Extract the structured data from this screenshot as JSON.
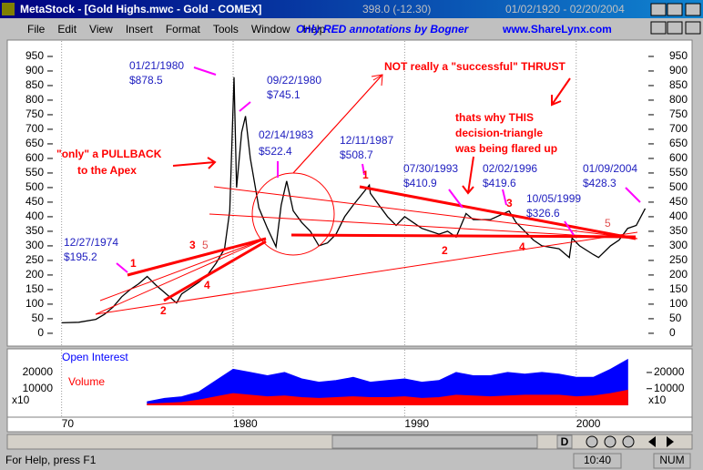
{
  "window": {
    "title": "MetaStock - [Gold Highs.mwc - Gold - COMEX]",
    "price": "398.0 (-12.30)",
    "date_range": "01/02/1920 - 02/20/2004"
  },
  "menu": [
    "File",
    "Edit",
    "View",
    "Insert",
    "Format",
    "Tools",
    "Window",
    "Help"
  ],
  "banner": [
    "Only RED annotations by Bogner",
    "www.ShareLynx.com"
  ],
  "chart_data": {
    "type": "line",
    "color": "#000000",
    "x": [
      1970,
      1971,
      1972,
      1972.5,
      1973,
      1973.5,
      1974,
      1974.5,
      1974.99,
      1975.5,
      1976,
      1976.7,
      1977,
      1978,
      1978.5,
      1979,
      1979.5,
      1979.8,
      1980.05,
      1980.2,
      1980.5,
      1980.72,
      1981,
      1981.5,
      1982,
      1982.5,
      1982.8,
      1983.12,
      1983.5,
      1984,
      1984.5,
      1985,
      1985.5,
      1986,
      1986.5,
      1987,
      1987.94,
      1988,
      1988.5,
      1989,
      1989.5,
      1990,
      1990.5,
      1991,
      1992,
      1992.5,
      1993,
      1993.58,
      1994,
      1995,
      1996.09,
      1996.5,
      1997,
      1997.5,
      1998,
      1999,
      1999.6,
      1999.76,
      2000.2,
      2001,
      2001.3,
      2002,
      2002.5,
      2003,
      2003.5,
      2004.02
    ],
    "values": [
      36,
      38,
      48,
      65,
      90,
      125,
      150,
      170,
      195.2,
      165,
      140,
      104,
      135,
      175,
      200,
      240,
      290,
      420,
      878.5,
      500,
      690,
      745.1,
      600,
      430,
      360,
      297,
      440,
      522.4,
      420,
      380,
      350,
      300,
      310,
      340,
      400,
      440,
      508.7,
      480,
      440,
      400,
      370,
      400,
      380,
      360,
      340,
      350,
      330,
      410.9,
      390,
      390,
      419.6,
      380,
      350,
      320,
      300,
      290,
      260,
      326.6,
      300,
      270,
      260,
      300,
      320,
      360,
      370,
      428.3
    ],
    "xlim": [
      1969.7,
      2004.1
    ],
    "ylim": [
      -44,
      1003
    ],
    "xticks": [
      {
        "value": 1970,
        "label": "70"
      },
      1980,
      1990,
      2000
    ],
    "yticks": [
      0,
      50,
      100,
      150,
      200,
      250,
      300,
      350,
      400,
      450,
      500,
      550,
      600,
      650,
      700,
      750,
      800,
      850,
      900,
      950
    ],
    "grid": true
  },
  "date_labels": [
    "01/21/1980",
    "$878.5",
    "09/22/1980",
    "$745.1",
    "02/14/1983",
    "$522.4",
    "12/11/1987",
    "$508.7",
    "07/30/1993",
    "$410.9",
    "02/02/1996",
    "$419.6",
    "10/05/1999",
    "$326.6",
    "01/09/2004",
    "$428.3",
    "12/27/1974",
    "$195.2"
  ],
  "red_notes": [
    "NOT really a \"successful\" THRUST",
    "thats why THIS",
    "decision-triangle",
    "was being flared up",
    "\"only\" a PULLBACK",
    "to the Apex",
    "1",
    "2",
    "3",
    "5",
    "4",
    "1",
    "2",
    "3",
    "4",
    "5"
  ],
  "volume_panel": {
    "type": "area",
    "x": [
      1975,
      1976,
      1977,
      1978,
      1979,
      1980,
      1981,
      1982,
      1983,
      1984,
      1985,
      1986,
      1987,
      1988,
      1989,
      1990,
      1991,
      1992,
      1993,
      1994,
      1995,
      1996,
      1997,
      1998,
      1999,
      2000,
      2001,
      2002,
      2003
    ],
    "series": [
      {
        "name": "Open Interest",
        "color": "#0000ff",
        "values": [
          2000,
          4000,
          5000,
          8000,
          15000,
          22000,
          20000,
          18000,
          20000,
          16000,
          14000,
          15000,
          17000,
          14000,
          15000,
          16000,
          14000,
          15000,
          20000,
          18000,
          18000,
          20000,
          19000,
          20000,
          19000,
          17000,
          17000,
          22000,
          28000
        ]
      },
      {
        "name": "Volume",
        "color": "#ff0000",
        "values": [
          500,
          1000,
          1500,
          3000,
          5000,
          7000,
          6000,
          5000,
          5500,
          4500,
          4000,
          4500,
          5000,
          4500,
          4500,
          5000,
          4000,
          4500,
          6000,
          5500,
          5000,
          5500,
          6000,
          6000,
          6000,
          5000,
          5500,
          7000,
          9000
        ]
      }
    ],
    "ylim": [
      -7000,
      34000
    ],
    "yticks": [
      10000,
      20000
    ],
    "scale_label": "x10"
  },
  "scrollbar": {
    "period": "D"
  },
  "status": {
    "help": "For Help, press F1",
    "time": "10:40",
    "num": "NUM"
  }
}
